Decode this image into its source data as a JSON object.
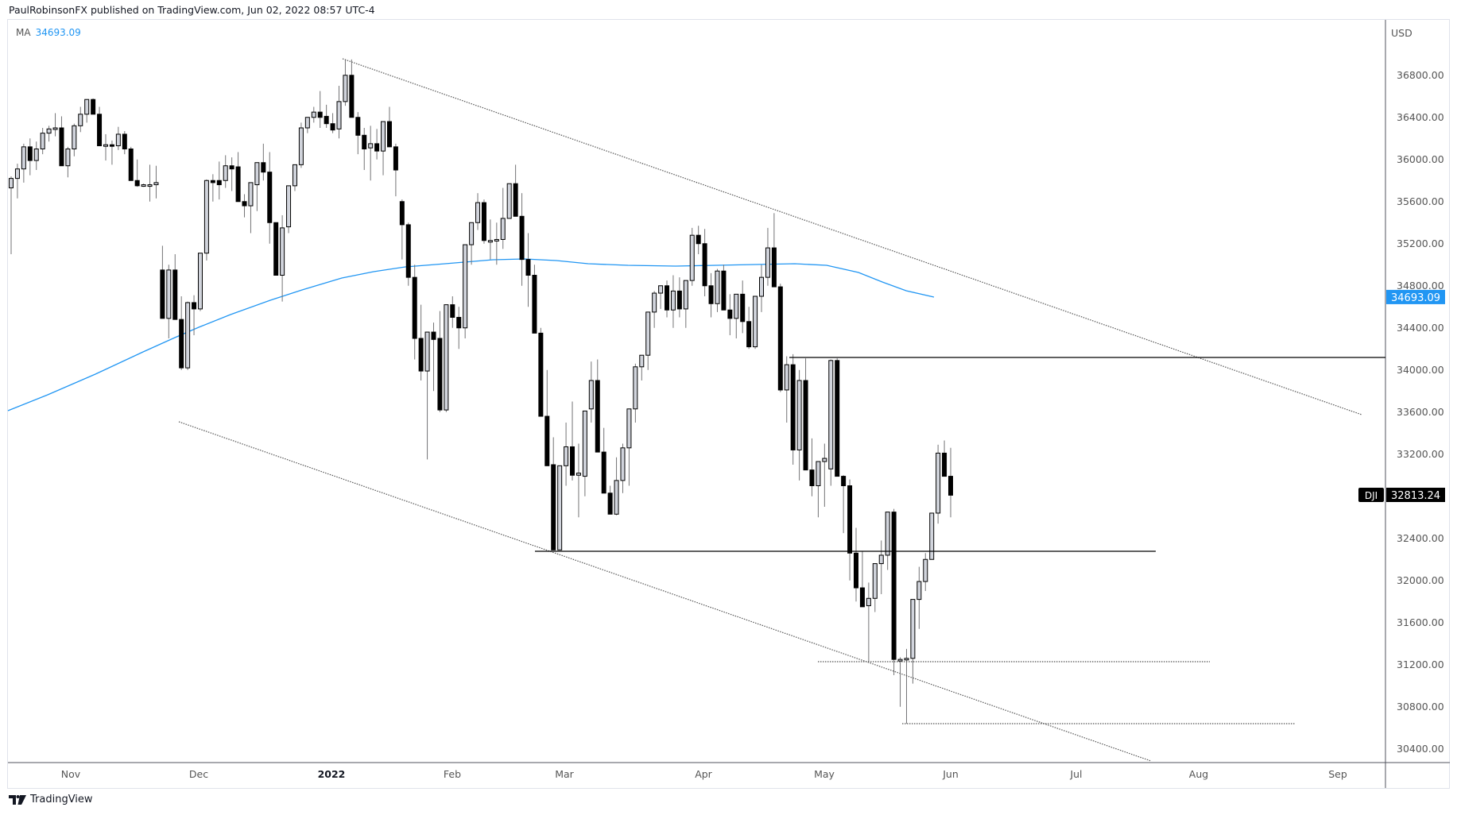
{
  "header": {
    "published_by": "PaulRobinsonFX published on TradingView.com, Jun 02, 2022 08:57 UTC-4"
  },
  "legend": {
    "indicator": "MA",
    "value": "34693.09"
  },
  "price_axis": {
    "currency": "USD",
    "ticks": [
      "36800.00",
      "36400.00",
      "36000.00",
      "35600.00",
      "35200.00",
      "34800.00",
      "34400.00",
      "34000.00",
      "33600.00",
      "33200.00",
      "32800.00",
      "32400.00",
      "32000.00",
      "31600.00",
      "31200.00",
      "30800.00",
      "30400.00"
    ],
    "ma_badge": "34693.09",
    "symbol_badge": "DJI",
    "last_price_badge": "32813.24"
  },
  "time_axis": {
    "labels": [
      "Nov",
      "Dec",
      "2022",
      "Feb",
      "Mar",
      "Apr",
      "May",
      "Jun",
      "Jul",
      "Aug",
      "Sep"
    ]
  },
  "footer": {
    "brand": "TradingView"
  },
  "colors": {
    "up_fill": "#d1d4dc",
    "up_border": "#000000",
    "down_fill": "#000000",
    "wick": "#737375",
    "ma_line": "#2196f3",
    "trendline": "#555555",
    "hline": "#000000"
  },
  "chart_data": {
    "type": "candlestick",
    "title": "DJI (Dow Jones Industrial Average) Daily",
    "symbol": "DJI",
    "ylabel": "USD",
    "ylim": [
      30250,
      37300
    ],
    "x_range": [
      "2021-10-29",
      "2022-09-15"
    ],
    "tick_labels_x": [
      "Nov",
      "Dec",
      "2022",
      "Feb",
      "Mar",
      "Apr",
      "May",
      "Jun",
      "Jul",
      "Aug",
      "Sep"
    ],
    "tick_labels_y": [
      36800,
      36400,
      36000,
      35600,
      35200,
      34800,
      34400,
      34000,
      33600,
      33200,
      32800,
      32400,
      32000,
      31600,
      31200,
      30800,
      30400
    ],
    "last_price": 32813.24,
    "indicators": [
      {
        "name": "MA",
        "value": 34693.09,
        "color": "#2196f3"
      }
    ],
    "annotations": [
      {
        "type": "trendline",
        "label": "upper descending trendline",
        "from": [
          "2022-01-05",
          36950
        ],
        "to": [
          "2022-07-28",
          33580
        ]
      },
      {
        "type": "trendline",
        "label": "lower descending trendline",
        "from": [
          "2021-11-26",
          33520
        ],
        "to": [
          "2022-07-22",
          30270
        ]
      },
      {
        "type": "hline",
        "price": 34110,
        "from": "2022-04-22",
        "to": "2022-09-15"
      },
      {
        "type": "hline",
        "price": 32270,
        "from": "2022-02-23",
        "to": "2022-07-22"
      },
      {
        "type": "hline_dotted",
        "price": 31230,
        "from": "2022-05-11",
        "to": "2022-07-28"
      },
      {
        "type": "hline_dotted",
        "price": 30640,
        "from": "2022-05-20",
        "to": "2022-08-22"
      }
    ],
    "ohlc": [
      [
        35730,
        35840,
        35100,
        35820
      ],
      [
        35820,
        35960,
        35630,
        35910
      ],
      [
        35910,
        36150,
        35780,
        36120
      ],
      [
        36120,
        36200,
        35850,
        35990
      ],
      [
        35990,
        36170,
        35900,
        36100
      ],
      [
        36100,
        36300,
        36050,
        36250
      ],
      [
        36250,
        36320,
        36170,
        36290
      ],
      [
        36290,
        36440,
        36220,
        36300
      ],
      [
        36300,
        36410,
        35950,
        35940
      ],
      [
        35940,
        36120,
        35830,
        36100
      ],
      [
        36100,
        36340,
        36030,
        36320
      ],
      [
        36320,
        36500,
        36260,
        36430
      ],
      [
        36430,
        36560,
        36350,
        36570
      ],
      [
        36570,
        36580,
        36450,
        36430
      ],
      [
        36430,
        36500,
        36180,
        36130
      ],
      [
        36130,
        36240,
        35990,
        36140
      ],
      [
        36140,
        36180,
        35950,
        36130
      ],
      [
        36130,
        36310,
        36090,
        36240
      ],
      [
        36240,
        36270,
        36050,
        36100
      ],
      [
        36100,
        36120,
        35880,
        35800
      ],
      [
        35800,
        36000,
        35740,
        35750
      ],
      [
        35750,
        35770,
        35740,
        35760
      ],
      [
        35760,
        35950,
        35600,
        35760
      ],
      [
        35760,
        35940,
        35630,
        35780
      ],
      [
        34950,
        35180,
        34900,
        34490
      ],
      [
        34490,
        35000,
        34300,
        34950
      ],
      [
        34950,
        35100,
        34600,
        34480
      ],
      [
        34480,
        34700,
        34000,
        34020
      ],
      [
        34020,
        34650,
        34000,
        34640
      ],
      [
        34640,
        34710,
        34330,
        34580
      ],
      [
        34580,
        35100,
        34560,
        35110
      ],
      [
        35110,
        35810,
        35040,
        35800
      ],
      [
        35800,
        35860,
        35600,
        35780
      ],
      [
        35800,
        35980,
        35620,
        35760
      ],
      [
        35800,
        36040,
        35730,
        35940
      ],
      [
        35940,
        36020,
        35700,
        35910
      ],
      [
        35930,
        36070,
        35700,
        35600
      ],
      [
        35600,
        35670,
        35450,
        35560
      ],
      [
        35560,
        35750,
        35300,
        35780
      ],
      [
        35760,
        35930,
        35510,
        35970
      ],
      [
        35970,
        36150,
        35800,
        35880
      ],
      [
        35880,
        36070,
        35200,
        35400
      ],
      [
        35400,
        35400,
        34900,
        34900
      ],
      [
        34900,
        35470,
        34650,
        35350
      ],
      [
        35360,
        35700,
        35300,
        35750
      ],
      [
        35750,
        35950,
        35700,
        35950
      ],
      [
        35950,
        36350,
        35920,
        36300
      ],
      [
        36300,
        36390,
        36250,
        36400
      ],
      [
        36400,
        36500,
        36350,
        36450
      ],
      [
        36450,
        36650,
        36300,
        36400
      ],
      [
        36410,
        36520,
        36300,
        36340
      ],
      [
        36340,
        36440,
        36250,
        36280
      ],
      [
        36290,
        36700,
        36200,
        36550
      ],
      [
        36550,
        36950,
        36510,
        36800
      ],
      [
        36800,
        36950,
        36500,
        36400
      ],
      [
        36400,
        36450,
        36050,
        36230
      ],
      [
        36230,
        36300,
        35900,
        36100
      ],
      [
        36110,
        36320,
        35800,
        36150
      ],
      [
        36150,
        36290,
        36000,
        36080
      ],
      [
        36080,
        36350,
        35850,
        36360
      ],
      [
        36360,
        36500,
        36150,
        36120
      ],
      [
        36120,
        36150,
        35650,
        35900
      ],
      [
        35600,
        35620,
        35050,
        35380
      ],
      [
        35380,
        35400,
        34800,
        34880
      ],
      [
        34880,
        35000,
        34100,
        34300
      ],
      [
        34300,
        34620,
        33900,
        33990
      ],
      [
        33990,
        34300,
        33150,
        34360
      ],
      [
        34360,
        34450,
        33800,
        34290
      ],
      [
        34300,
        34560,
        33600,
        33620
      ],
      [
        33620,
        34400,
        33600,
        34620
      ],
      [
        34620,
        34700,
        34400,
        34500
      ],
      [
        34500,
        34600,
        34200,
        34400
      ],
      [
        34400,
        35150,
        34300,
        35190
      ],
      [
        35190,
        35380,
        35000,
        35400
      ],
      [
        35400,
        35680,
        35330,
        35590
      ],
      [
        35590,
        35620,
        35200,
        35230
      ],
      [
        35230,
        35430,
        35050,
        35230
      ],
      [
        35230,
        35400,
        35000,
        35240
      ],
      [
        35240,
        35730,
        35150,
        35440
      ],
      [
        35440,
        35750,
        35440,
        35770
      ],
      [
        35770,
        35950,
        35500,
        35460
      ],
      [
        35460,
        35680,
        34800,
        35050
      ],
      [
        35050,
        35300,
        34600,
        34900
      ],
      [
        34900,
        35000,
        34400,
        34350
      ],
      [
        34350,
        34400,
        33800,
        33560
      ],
      [
        33560,
        34000,
        33100,
        33090
      ],
      [
        33100,
        33360,
        32300,
        32290
      ],
      [
        32290,
        33090,
        32290,
        33090
      ],
      [
        33090,
        33500,
        32900,
        33270
      ],
      [
        33270,
        33700,
        32950,
        33000
      ],
      [
        33000,
        33300,
        32600,
        33020
      ],
      [
        32990,
        33100,
        32800,
        33610
      ],
      [
        33630,
        34080,
        33500,
        33900
      ],
      [
        33900,
        34100,
        33700,
        33220
      ],
      [
        33220,
        33450,
        32870,
        32830
      ],
      [
        32830,
        32900,
        32700,
        32630
      ],
      [
        32630,
        33170,
        32620,
        32950
      ],
      [
        32950,
        33300,
        32830,
        33260
      ],
      [
        33260,
        33400,
        32900,
        33630
      ],
      [
        33630,
        34060,
        33500,
        34030
      ],
      [
        34030,
        34100,
        33900,
        34140
      ],
      [
        34140,
        34480,
        34000,
        34550
      ],
      [
        34550,
        34750,
        34400,
        34730
      ],
      [
        34730,
        34800,
        34580,
        34800
      ],
      [
        34800,
        34850,
        34500,
        34570
      ],
      [
        34570,
        34900,
        34400,
        34750
      ],
      [
        34750,
        34880,
        34500,
        34580
      ],
      [
        34580,
        34850,
        34400,
        34850
      ],
      [
        34850,
        35350,
        34800,
        35280
      ],
      [
        35280,
        35370,
        35100,
        35200
      ],
      [
        35200,
        35340,
        34700,
        34800
      ],
      [
        34800,
        34920,
        34500,
        34630
      ],
      [
        34630,
        34960,
        34550,
        34940
      ],
      [
        34940,
        35000,
        34600,
        34570
      ],
      [
        34570,
        34720,
        34330,
        34490
      ],
      [
        34490,
        34620,
        34300,
        34720
      ],
      [
        34720,
        34850,
        34350,
        34460
      ],
      [
        34460,
        34600,
        34200,
        34220
      ],
      [
        34220,
        34700,
        34200,
        34700
      ],
      [
        34700,
        35000,
        34550,
        34880
      ],
      [
        34880,
        35350,
        34800,
        35160
      ],
      [
        35160,
        35490,
        34870,
        34790
      ],
      [
        34790,
        34820,
        33790,
        33810
      ],
      [
        33810,
        34130,
        33500,
        34050
      ],
      [
        34050,
        34150,
        33100,
        33240
      ],
      [
        33240,
        34000,
        32950,
        33900
      ],
      [
        33900,
        34110,
        33370,
        33050
      ],
      [
        33050,
        33350,
        32800,
        32900
      ],
      [
        32900,
        33000,
        32600,
        33130
      ],
      [
        33130,
        33300,
        32700,
        33160
      ],
      [
        33060,
        34100,
        32900,
        34090
      ],
      [
        34090,
        34110,
        32990,
        32990
      ],
      [
        32990,
        33000,
        32450,
        32900
      ],
      [
        32900,
        32960,
        32000,
        32260
      ],
      [
        32260,
        32500,
        31800,
        31930
      ],
      [
        31930,
        32280,
        31810,
        31750
      ],
      [
        31760,
        31980,
        31230,
        31830
      ],
      [
        31830,
        32130,
        31700,
        32160
      ],
      [
        32160,
        32380,
        31870,
        32240
      ],
      [
        32240,
        32650,
        32100,
        32650
      ],
      [
        32650,
        32680,
        31100,
        31250
      ],
      [
        31250,
        31270,
        30800,
        31250
      ],
      [
        31250,
        31350,
        30640,
        31260
      ],
      [
        31260,
        31450,
        31020,
        31820
      ],
      [
        31820,
        32130,
        31540,
        31990
      ],
      [
        31990,
        32260,
        31900,
        32200
      ],
      [
        32200,
        32640,
        32400,
        32640
      ],
      [
        32640,
        33290,
        32540,
        33210
      ],
      [
        33210,
        33330,
        32990,
        32990
      ],
      [
        32990,
        33260,
        32600,
        32810
      ]
    ]
  }
}
